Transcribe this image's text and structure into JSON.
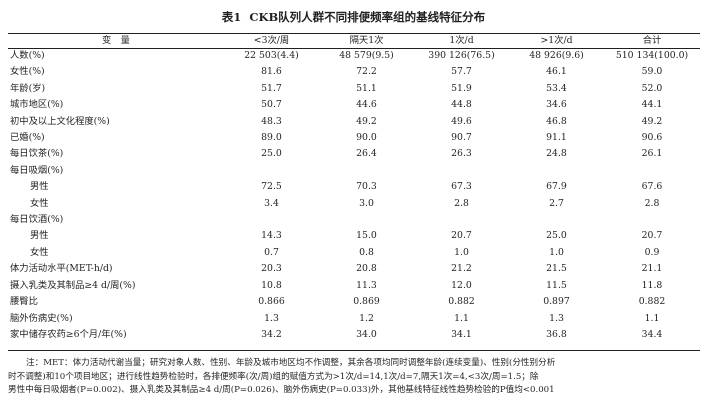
{
  "table": {
    "label": "表1",
    "title": "CKB队列人群不同排便频率组的基线特征分布",
    "headers": [
      "变　量",
      "<3次/周",
      "隔天1次",
      "1次/d",
      ">1次/d",
      "合计"
    ],
    "rows": [
      {
        "var": "人数(%)",
        "sub": false,
        "values": [
          "22 503(4.4)",
          "48 579(9.5)",
          "390 126(76.5)",
          "48 926(9.6)",
          "510 134(100.0)"
        ]
      },
      {
        "var": "女性(%)",
        "sub": false,
        "values": [
          "81.6",
          "72.2",
          "57.7",
          "46.1",
          "59.0"
        ]
      },
      {
        "var": "年龄(岁)",
        "sub": false,
        "values": [
          "51.7",
          "51.1",
          "51.9",
          "53.4",
          "52.0"
        ]
      },
      {
        "var": "城市地区(%)",
        "sub": false,
        "values": [
          "50.7",
          "44.6",
          "44.8",
          "34.6",
          "44.1"
        ]
      },
      {
        "var": "初中及以上文化程度(%)",
        "sub": false,
        "values": [
          "48.3",
          "49.2",
          "49.6",
          "46.8",
          "49.2"
        ]
      },
      {
        "var": "已婚(%)",
        "sub": false,
        "values": [
          "89.0",
          "90.0",
          "90.7",
          "91.1",
          "90.6"
        ]
      },
      {
        "var": "每日饮茶(%)",
        "sub": false,
        "values": [
          "25.0",
          "26.4",
          "26.3",
          "24.8",
          "26.1"
        ]
      },
      {
        "var": "每日吸烟(%)",
        "sub": false,
        "values": [
          "",
          "",
          "",
          "",
          ""
        ]
      },
      {
        "var": "男性",
        "sub": true,
        "values": [
          "72.5",
          "70.3",
          "67.3",
          "67.9",
          "67.6"
        ]
      },
      {
        "var": "女性",
        "sub": true,
        "values": [
          "3.4",
          "3.0",
          "2.8",
          "2.7",
          "2.8"
        ]
      },
      {
        "var": "每日饮酒(%)",
        "sub": false,
        "values": [
          "",
          "",
          "",
          "",
          ""
        ]
      },
      {
        "var": "男性",
        "sub": true,
        "values": [
          "14.3",
          "15.0",
          "20.7",
          "25.0",
          "20.7"
        ]
      },
      {
        "var": "女性",
        "sub": true,
        "values": [
          "0.7",
          "0.8",
          "1.0",
          "1.0",
          "0.9"
        ]
      },
      {
        "var": "体力活动水平(MET-h/d)",
        "sub": false,
        "values": [
          "20.3",
          "20.8",
          "21.2",
          "21.5",
          "21.1"
        ]
      },
      {
        "var": "摄入乳类及其制品≥4 d/周(%)",
        "sub": false,
        "values": [
          "10.8",
          "11.3",
          "12.0",
          "11.5",
          "11.8"
        ]
      },
      {
        "var": "腰臀比",
        "sub": false,
        "values": [
          "0.866",
          "0.869",
          "0.882",
          "0.897",
          "0.882"
        ]
      },
      {
        "var": "脑外伤病史(%)",
        "sub": false,
        "values": [
          "1.3",
          "1.2",
          "1.1",
          "1.3",
          "1.1"
        ]
      },
      {
        "var": "家中储存农药≥6个月/年(%)",
        "sub": false,
        "values": [
          "34.2",
          "34.0",
          "34.1",
          "36.8",
          "34.4"
        ]
      }
    ],
    "note": {
      "line1": "注：MET：体力活动代谢当量；研究对象人数、性别、年龄及城市地区均不作调整，其余各项均同时调整年龄(连续变量)、性别(分性别分析",
      "line2": "时不调整)和10个项目地区；进行线性趋势检验时，各排便频率(次/周)组的赋值方式为>1次/d=14,1次/d=7,隔天1次=4,<3次/周=1.5；除",
      "line3": "男性中每日吸烟者(P=0.002)、摄入乳类及其制品≥4 d/周(P=0.026)、脑外伤病史(P=0.033)外，其他基线特征线性趋势检验的P值均<0.001"
    }
  }
}
